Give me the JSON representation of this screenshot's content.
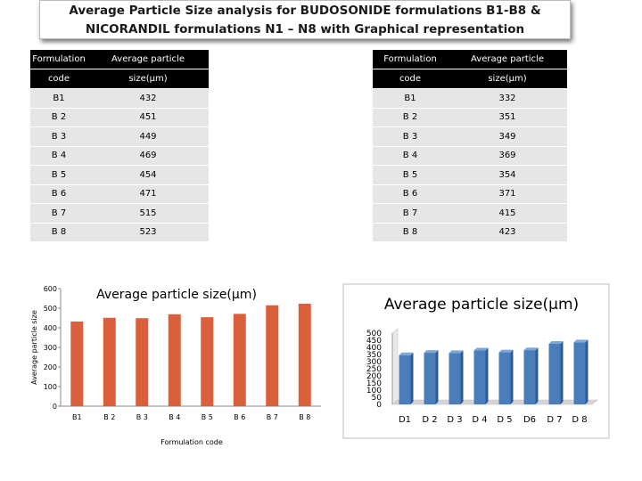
{
  "title": {
    "line1": "Average Particle Size analysis for BUDOSONIDE formulations B1-B8 &",
    "line2": "NICORANDIL formulations N1 – N8 with Graphical representation"
  },
  "table_left": {
    "header": {
      "col1_line1": "Formulation",
      "col1_line2": "code",
      "col2_line1": "Average particle",
      "col2_line2": "size(µm)"
    },
    "rows": [
      {
        "code": "B1",
        "size": "432"
      },
      {
        "code": "B 2",
        "size": "451"
      },
      {
        "code": "B 3",
        "size": "449"
      },
      {
        "code": "B 4",
        "size": "469"
      },
      {
        "code": "B 5",
        "size": "454"
      },
      {
        "code": "B 6",
        "size": "471"
      },
      {
        "code": "B 7",
        "size": "515"
      },
      {
        "code": "B 8",
        "size": "523"
      }
    ]
  },
  "table_right": {
    "header": {
      "col1_line1": "Formulation",
      "col1_line2": "code",
      "col2_line1": "Average particle",
      "col2_line2": "size(µm)"
    },
    "rows": [
      {
        "code": "B1",
        "size": "332"
      },
      {
        "code": "B 2",
        "size": "351"
      },
      {
        "code": "B 3",
        "size": "349"
      },
      {
        "code": "B 4",
        "size": "369"
      },
      {
        "code": "B 5",
        "size": "354"
      },
      {
        "code": "B 6",
        "size": "371"
      },
      {
        "code": "B 7",
        "size": "415"
      },
      {
        "code": "B 8",
        "size": "423"
      }
    ]
  },
  "colors": {
    "bar_left": "#d9603b",
    "bar_right": "#4a7ebb",
    "bar_right_side": "#2c5a94",
    "header_bg": "#000000",
    "row_bg": "#e6e6e6"
  },
  "chart_data": [
    {
      "type": "bar",
      "title": "Average particle size(µm)",
      "xlabel": "Formulation code",
      "ylabel": "Average particle size",
      "categories": [
        "B1",
        "B 2",
        "B 3",
        "B 4",
        "B 5",
        "B 6",
        "B 7",
        "B 8"
      ],
      "values": [
        432,
        451,
        449,
        469,
        454,
        471,
        515,
        523
      ],
      "ylim": [
        0,
        600
      ],
      "yticks": [
        "0",
        "100",
        "200",
        "300",
        "400",
        "500",
        "600"
      ]
    },
    {
      "type": "bar",
      "title": "Average particle size(µm)",
      "xlabel": "",
      "ylabel": "",
      "categories": [
        "D1",
        "D 2",
        "D 3",
        "D 4",
        "D 5",
        "D6",
        "D 7",
        "D 8"
      ],
      "values": [
        345,
        362,
        360,
        378,
        365,
        380,
        425,
        435
      ],
      "ylim": [
        0,
        500
      ],
      "yticks": [
        "0",
        "50",
        "100",
        "150",
        "200",
        "250",
        "300",
        "350",
        "400",
        "450",
        "500"
      ]
    }
  ]
}
